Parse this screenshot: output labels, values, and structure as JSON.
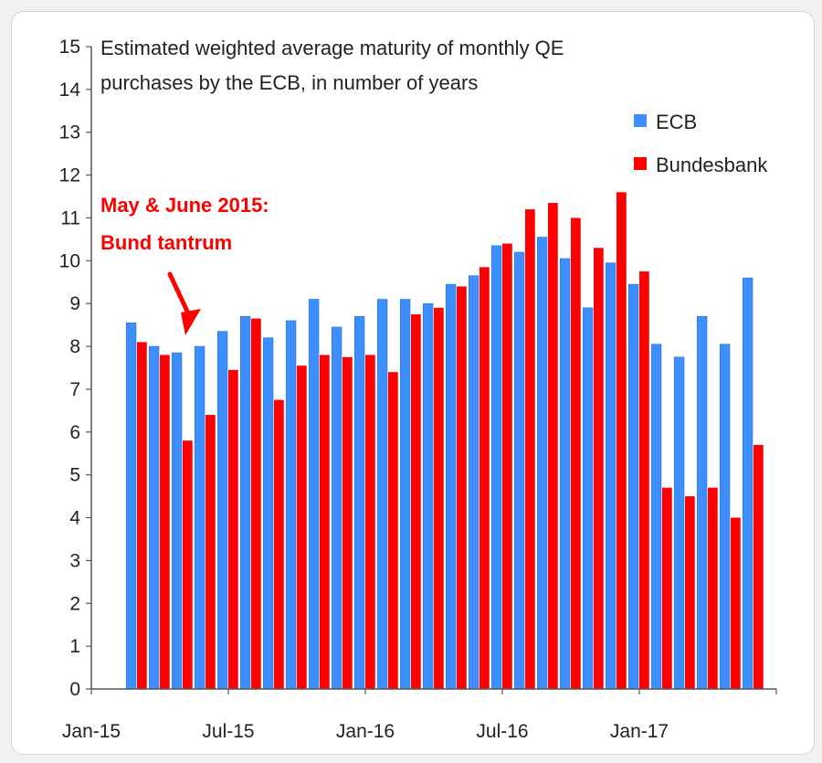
{
  "chart_data": {
    "type": "bar",
    "title": "Estimated weighted average maturity of monthly QE purchases by the ECB, in number of years",
    "title_lines": [
      "Estimated weighted average maturity of monthly QE",
      "purchases by the ECB, in number of years"
    ],
    "xlabel": "",
    "ylabel": "",
    "ylim": [
      0,
      15
    ],
    "y_ticks": [
      0,
      1,
      2,
      3,
      4,
      5,
      6,
      7,
      8,
      9,
      10,
      11,
      12,
      13,
      14,
      15
    ],
    "x_tick_labels": [
      "Jan-15",
      "Jul-15",
      "Jan-16",
      "Jul-16",
      "Jan-17"
    ],
    "x_tick_months": [
      "2015-01",
      "2015-07",
      "2016-01",
      "2016-07",
      "2017-01"
    ],
    "x_range": [
      "2015-01",
      "2017-07"
    ],
    "grid": false,
    "legend_position": "top-right",
    "categories": [
      "2015-03",
      "2015-04",
      "2015-05",
      "2015-06",
      "2015-07",
      "2015-08",
      "2015-09",
      "2015-10",
      "2015-11",
      "2015-12",
      "2016-01",
      "2016-02",
      "2016-03",
      "2016-04",
      "2016-05",
      "2016-06",
      "2016-07",
      "2016-08",
      "2016-09",
      "2016-10",
      "2016-11",
      "2016-12",
      "2017-01",
      "2017-02",
      "2017-03",
      "2017-04",
      "2017-05",
      "2017-06"
    ],
    "series": [
      {
        "name": "ECB",
        "color": "#3d8fff",
        "values": [
          8.55,
          8.0,
          7.85,
          8.0,
          8.35,
          8.7,
          8.2,
          8.6,
          9.1,
          8.45,
          8.7,
          9.1,
          9.1,
          9.0,
          9.45,
          9.65,
          10.35,
          10.2,
          10.55,
          10.05,
          8.9,
          9.95,
          9.45,
          8.05,
          7.75,
          8.7,
          8.05,
          9.6
        ]
      },
      {
        "name": "Bundesbank",
        "color": "#ff0000",
        "values": [
          8.1,
          7.8,
          5.8,
          6.4,
          7.45,
          8.65,
          6.75,
          7.55,
          7.8,
          7.75,
          7.8,
          7.4,
          8.75,
          8.9,
          9.4,
          9.85,
          10.4,
          11.2,
          11.35,
          11.0,
          10.3,
          11.6,
          9.75,
          4.7,
          4.5,
          4.7,
          4.0,
          5.7
        ]
      }
    ],
    "annotation": {
      "lines": [
        "May & June 2015:",
        "Bund tantrum"
      ],
      "color": "#ff0000",
      "arrow_target": "2015-05"
    }
  }
}
